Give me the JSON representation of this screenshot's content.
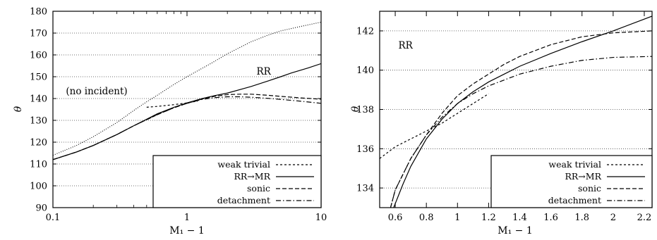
{
  "chart_data": [
    {
      "type": "line",
      "xscale": "log",
      "xlim": [
        0.1,
        10
      ],
      "ylim": [
        90,
        180
      ],
      "xlabel": "M₁ − 1",
      "ylabel": "θ",
      "grid": "horizontal-dotted",
      "legend_position": "bottom-right",
      "xticks": [
        {
          "v": 0.1,
          "t": "0.1"
        },
        {
          "v": 1,
          "t": "1"
        },
        {
          "v": 10,
          "t": "10"
        }
      ],
      "yticks": [
        90,
        100,
        110,
        120,
        130,
        140,
        150,
        160,
        170,
        180
      ],
      "annotations": [
        {
          "text": "RR",
          "x": 3.3,
          "y": 151
        },
        {
          "text": "(no incident)",
          "x": 0.125,
          "y": 142
        }
      ],
      "series": [
        {
          "name": "weak trivial",
          "style": "dotted-short",
          "points": [
            [
              0.5,
              136
            ],
            [
              0.6,
              136.4
            ],
            [
              0.8,
              137.2
            ],
            [
              1,
              138
            ],
            [
              1.2,
              138.8
            ]
          ]
        },
        {
          "name": "RR→MR",
          "style": "solid",
          "points": [
            [
              0.1,
              112
            ],
            [
              0.15,
              115.5
            ],
            [
              0.2,
              118.5
            ],
            [
              0.3,
              123.5
            ],
            [
              0.4,
              127.5
            ],
            [
              0.5,
              130.5
            ],
            [
              0.6,
              133
            ],
            [
              0.8,
              136
            ],
            [
              1,
              138
            ],
            [
              1.3,
              140
            ],
            [
              1.6,
              141.3
            ],
            [
              2,
              142.5
            ],
            [
              3,
              145.5
            ],
            [
              4,
              148
            ],
            [
              5,
              150
            ],
            [
              6,
              151.7
            ],
            [
              8,
              154
            ],
            [
              10,
              156
            ]
          ]
        },
        {
          "name": "sonic",
          "style": "dashed",
          "points": [
            [
              0.1,
              112
            ],
            [
              0.15,
              115.5
            ],
            [
              0.2,
              118.5
            ],
            [
              0.3,
              123.5
            ],
            [
              0.4,
              127.5
            ],
            [
              0.5,
              130.3
            ],
            [
              0.6,
              132.6
            ],
            [
              0.8,
              135.8
            ],
            [
              1,
              137.8
            ],
            [
              1.3,
              139.8
            ],
            [
              1.6,
              141
            ],
            [
              2,
              141.8
            ],
            [
              2.5,
              142
            ],
            [
              3,
              142
            ],
            [
              4,
              141.5
            ],
            [
              5,
              141
            ],
            [
              7,
              140.3
            ],
            [
              10,
              139.7
            ]
          ]
        },
        {
          "name": "detachment",
          "style": "dash-dot",
          "points": [
            [
              0.1,
              112
            ],
            [
              0.15,
              115.5
            ],
            [
              0.2,
              118.5
            ],
            [
              0.3,
              123.5
            ],
            [
              0.4,
              127.5
            ],
            [
              0.5,
              130.3
            ],
            [
              0.6,
              132.6
            ],
            [
              0.8,
              135.8
            ],
            [
              1,
              137.8
            ],
            [
              1.3,
              139.6
            ],
            [
              1.6,
              140.4
            ],
            [
              2,
              140.8
            ],
            [
              2.5,
              140.8
            ],
            [
              3,
              140.6
            ],
            [
              4,
              140.1
            ],
            [
              5,
              139.6
            ],
            [
              7,
              138.8
            ],
            [
              10,
              137.8
            ]
          ]
        },
        {
          "name": "",
          "style": "fine-dotted",
          "points": [
            [
              0.1,
              114
            ],
            [
              0.15,
              118.5
            ],
            [
              0.2,
              122.5
            ],
            [
              0.3,
              129
            ],
            [
              0.4,
              134.5
            ],
            [
              0.5,
              138.5
            ],
            [
              0.6,
              141.5
            ],
            [
              0.8,
              146.5
            ],
            [
              1,
              150
            ],
            [
              1.5,
              156
            ],
            [
              2,
              160.5
            ],
            [
              3,
              166
            ],
            [
              4,
              169
            ],
            [
              5,
              171
            ],
            [
              7,
              173
            ],
            [
              10,
              175
            ]
          ]
        }
      ]
    },
    {
      "type": "line",
      "xlim": [
        0.5,
        2.25
      ],
      "ylim": [
        133,
        143
      ],
      "xlabel": "M₁ − 1",
      "ylabel": "θ",
      "grid": "horizontal-dotted",
      "legend_position": "bottom-right",
      "xticks": [
        {
          "v": 0.6,
          "t": "0.6"
        },
        {
          "v": 0.8,
          "t": "0.8"
        },
        {
          "v": 1.0,
          "t": "1"
        },
        {
          "v": 1.2,
          "t": "1.2"
        },
        {
          "v": 1.4,
          "t": "1.4"
        },
        {
          "v": 1.6,
          "t": "1.6"
        },
        {
          "v": 1.8,
          "t": "1.8"
        },
        {
          "v": 2.0,
          "t": "2"
        },
        {
          "v": 2.2,
          "t": "2.2"
        }
      ],
      "yticks": [
        134,
        136,
        138,
        140,
        142
      ],
      "annotations": [
        {
          "text": "RR",
          "x": 0.62,
          "y": 141.1
        }
      ],
      "series": [
        {
          "name": "weak trivial",
          "style": "dotted-short",
          "points": [
            [
              0.5,
              135.5
            ],
            [
              0.6,
              136.1
            ],
            [
              0.7,
              136.5
            ],
            [
              0.8,
              136.9
            ],
            [
              0.9,
              137.3
            ],
            [
              1.0,
              137.8
            ],
            [
              1.1,
              138.3
            ],
            [
              1.2,
              138.8
            ]
          ]
        },
        {
          "name": "RR→MR",
          "style": "solid",
          "points": [
            [
              0.59,
              133
            ],
            [
              0.65,
              134.2
            ],
            [
              0.7,
              135.1
            ],
            [
              0.8,
              136.5
            ],
            [
              0.9,
              137.5
            ],
            [
              1.0,
              138.3
            ],
            [
              1.1,
              138.9
            ],
            [
              1.2,
              139.4
            ],
            [
              1.3,
              139.8
            ],
            [
              1.4,
              140.2
            ],
            [
              1.6,
              140.85
            ],
            [
              1.8,
              141.45
            ],
            [
              2.0,
              142.0
            ],
            [
              2.25,
              142.75
            ]
          ]
        },
        {
          "name": "sonic",
          "style": "dashed",
          "points": [
            [
              0.57,
              133
            ],
            [
              0.6,
              133.9
            ],
            [
              0.7,
              135.5
            ],
            [
              0.8,
              136.7
            ],
            [
              0.9,
              137.8
            ],
            [
              1.0,
              138.7
            ],
            [
              1.1,
              139.3
            ],
            [
              1.2,
              139.8
            ],
            [
              1.3,
              140.3
            ],
            [
              1.4,
              140.7
            ],
            [
              1.6,
              141.3
            ],
            [
              1.8,
              141.7
            ],
            [
              2.0,
              141.9
            ],
            [
              2.25,
              142.0
            ]
          ]
        },
        {
          "name": "detachment",
          "style": "dash-dot",
          "points": [
            [
              0.57,
              133
            ],
            [
              0.6,
              133.9
            ],
            [
              0.7,
              135.5
            ],
            [
              0.8,
              136.7
            ],
            [
              0.9,
              137.6
            ],
            [
              1.0,
              138.3
            ],
            [
              1.1,
              138.8
            ],
            [
              1.2,
              139.2
            ],
            [
              1.3,
              139.5
            ],
            [
              1.4,
              139.8
            ],
            [
              1.6,
              140.2
            ],
            [
              1.8,
              140.5
            ],
            [
              2.0,
              140.65
            ],
            [
              2.25,
              140.7
            ]
          ]
        }
      ]
    }
  ]
}
